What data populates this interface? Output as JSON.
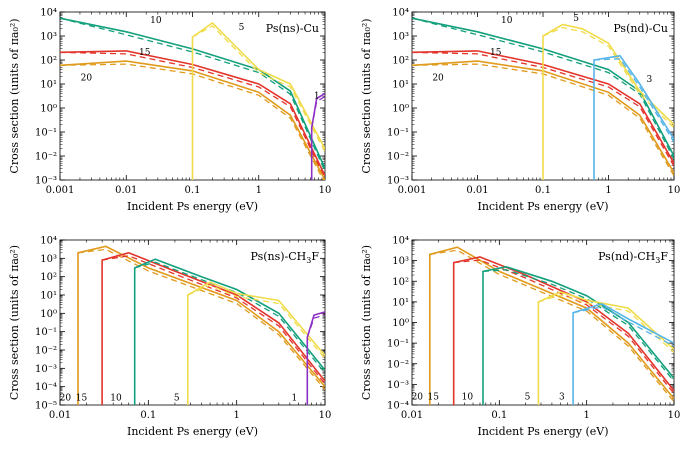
{
  "colors": {
    "20": "#e09a1c",
    "15": "#e3342b",
    "10": "#13a07c",
    "5": "#f0dc4a",
    "3": "#56b4e9",
    "1": "#8e2fc4"
  },
  "chart_data": [
    {
      "type": "line",
      "title": "Ps(ns)-Cu",
      "title_sub": "",
      "xlabel": "Incident Ps energy (eV)",
      "ylabel": "Cross section (units of πa₀²)",
      "xscale": "log",
      "yscale": "log",
      "xlim": [
        0.001,
        10
      ],
      "ylim": [
        0.001,
        10000
      ],
      "xticks": [
        "0.001",
        "0.01",
        "0.1",
        "1",
        "10"
      ],
      "yexp": [
        -3,
        -2,
        -1,
        0,
        1,
        2,
        3,
        4
      ],
      "series": [
        {
          "name": "10",
          "threshold": null,
          "points": [
            [
              0.001,
              5500
            ],
            [
              0.01,
              1500
            ],
            [
              0.1,
              290
            ],
            [
              1,
              40
            ],
            [
              3,
              5
            ],
            [
              10,
              0.003
            ]
          ],
          "curve_label": {
            "text": "10",
            "x": 0.028,
            "y": 3500
          }
        },
        {
          "name": "15",
          "threshold": null,
          "points": [
            [
              0.001,
              210
            ],
            [
              0.01,
              240
            ],
            [
              0.1,
              65
            ],
            [
              1,
              10
            ],
            [
              3,
              1.5
            ],
            [
              10,
              0.0015
            ]
          ],
          "curve_label": {
            "text": "15",
            "x": 0.019,
            "y": 160
          }
        },
        {
          "name": "20",
          "threshold": null,
          "points": [
            [
              0.001,
              60
            ],
            [
              0.01,
              90
            ],
            [
              0.1,
              35
            ],
            [
              1,
              4.5
            ],
            [
              3,
              0.5
            ],
            [
              10,
              0.001
            ]
          ],
          "curve_label": {
            "text": "20",
            "x": 0.0025,
            "y": 14
          }
        },
        {
          "name": "5",
          "threshold": 0.1,
          "points": [
            [
              0.1,
              900
            ],
            [
              0.2,
              3500
            ],
            [
              0.4,
              500
            ],
            [
              1,
              40
            ],
            [
              3,
              10
            ],
            [
              10,
              0.02
            ]
          ],
          "curve_label": {
            "text": "5",
            "x": 0.55,
            "y": 1800
          }
        },
        {
          "name": "1",
          "threshold": 6.3,
          "points": [
            [
              6.3,
              0.15
            ],
            [
              7.5,
              2.5
            ],
            [
              10,
              4
            ]
          ],
          "curve_label": {
            "text": "1",
            "x": 7.5,
            "y": 2.5
          }
        }
      ]
    },
    {
      "type": "line",
      "title": "Ps(nd)-Cu",
      "title_sub": "",
      "xlabel": "Incident Ps energy (eV)",
      "ylabel": "Cross section (units of πa₀²)",
      "xscale": "log",
      "yscale": "log",
      "xlim": [
        0.001,
        10
      ],
      "ylim": [
        0.001,
        10000
      ],
      "xticks": [
        "0.001",
        "0.01",
        "0.1",
        "1",
        "10"
      ],
      "yexp": [
        -3,
        -2,
        -1,
        0,
        1,
        2,
        3,
        4
      ],
      "series": [
        {
          "name": "10",
          "threshold": null,
          "points": [
            [
              0.001,
              5500
            ],
            [
              0.01,
              1500
            ],
            [
              0.1,
              290
            ],
            [
              1,
              40
            ],
            [
              3,
              5
            ],
            [
              10,
              0.01
            ]
          ],
          "curve_label": {
            "text": "10",
            "x": 0.028,
            "y": 3500
          }
        },
        {
          "name": "15",
          "threshold": null,
          "points": [
            [
              0.001,
              210
            ],
            [
              0.01,
              240
            ],
            [
              0.1,
              65
            ],
            [
              1,
              10
            ],
            [
              3,
              1.5
            ],
            [
              10,
              0.005
            ]
          ],
          "curve_label": {
            "text": "15",
            "x": 0.019,
            "y": 160
          }
        },
        {
          "name": "20",
          "threshold": null,
          "points": [
            [
              0.001,
              60
            ],
            [
              0.01,
              90
            ],
            [
              0.1,
              35
            ],
            [
              1,
              4.5
            ],
            [
              3,
              0.5
            ],
            [
              10,
              0.002
            ]
          ],
          "curve_label": {
            "text": "20",
            "x": 0.0025,
            "y": 14
          }
        },
        {
          "name": "5",
          "threshold": 0.1,
          "points": [
            [
              0.1,
              1000
            ],
            [
              0.2,
              3000
            ],
            [
              0.4,
              2000
            ],
            [
              1,
              500
            ],
            [
              3,
              5
            ],
            [
              10,
              0.2
            ]
          ],
          "curve_label": {
            "text": "5",
            "x": 0.32,
            "y": 4200
          }
        },
        {
          "name": "3",
          "threshold": 0.6,
          "points": [
            [
              0.6,
              100
            ],
            [
              1.5,
              150
            ],
            [
              3,
              10
            ],
            [
              10,
              0.05
            ]
          ],
          "curve_label": {
            "text": "3",
            "x": 4.2,
            "y": 12
          }
        }
      ]
    },
    {
      "type": "line",
      "title": "Ps(ns)-CH",
      "title_sub": "3",
      "title_end": "F",
      "xlabel": "Incident Ps energy (eV)",
      "ylabel": "Cross section (units of πa₀²)",
      "xscale": "log",
      "yscale": "log",
      "xlim": [
        0.01,
        10
      ],
      "ylim": [
        1e-05,
        10000
      ],
      "xticks": [
        "0.01",
        "0.1",
        "1",
        "10"
      ],
      "yexp": [
        -5,
        -4,
        -3,
        -2,
        -1,
        0,
        1,
        2,
        3,
        4
      ],
      "series": [
        {
          "name": "20",
          "threshold": 0.016,
          "points": [
            [
              0.016,
              2000
            ],
            [
              0.033,
              4500
            ],
            [
              0.1,
              300
            ],
            [
              1,
              5
            ],
            [
              3,
              0.1
            ],
            [
              10,
              0.0001
            ]
          ],
          "curve_label": {
            "text": "20",
            "x": 0.0115,
            "y": 1.8e-05
          }
        },
        {
          "name": "15",
          "threshold": 0.03,
          "points": [
            [
              0.03,
              800
            ],
            [
              0.06,
              2000
            ],
            [
              0.2,
              200
            ],
            [
              1,
              10
            ],
            [
              3,
              0.3
            ],
            [
              10,
              0.0002
            ]
          ],
          "curve_label": {
            "text": "15",
            "x": 0.0175,
            "y": 1.8e-05
          }
        },
        {
          "name": "10",
          "threshold": 0.07,
          "points": [
            [
              0.07,
              300
            ],
            [
              0.12,
              900
            ],
            [
              0.4,
              100
            ],
            [
              1,
              20
            ],
            [
              3,
              1
            ],
            [
              10,
              0.0008
            ]
          ],
          "curve_label": {
            "text": "10",
            "x": 0.043,
            "y": 1.8e-05
          }
        },
        {
          "name": "5",
          "threshold": 0.28,
          "points": [
            [
              0.28,
              10
            ],
            [
              0.5,
              50
            ],
            [
              1,
              12
            ],
            [
              3,
              5
            ],
            [
              10,
              0.005
            ]
          ],
          "curve_label": {
            "text": "5",
            "x": 0.21,
            "y": 1.8e-05
          }
        },
        {
          "name": "1",
          "threshold": 6.3,
          "points": [
            [
              6.3,
              0.05
            ],
            [
              7.5,
              0.8
            ],
            [
              10,
              1.2
            ]
          ],
          "curve_label": {
            "text": "1",
            "x": 4.5,
            "y": 1.8e-05
          }
        }
      ]
    },
    {
      "type": "line",
      "title": "Ps(nd)-CH",
      "title_sub": "3",
      "title_end": "F",
      "xlabel": "Incident Ps energy (eV)",
      "ylabel": "Cross section (units of πa₀²)",
      "xscale": "log",
      "yscale": "log",
      "xlim": [
        0.01,
        10
      ],
      "ylim": [
        0.0001,
        10000
      ],
      "xticks": [
        "0.01",
        "0.1",
        "1",
        "10"
      ],
      "yexp": [
        -4,
        -3,
        -2,
        -1,
        0,
        1,
        2,
        3,
        4
      ],
      "series": [
        {
          "name": "20",
          "threshold": 0.016,
          "points": [
            [
              0.016,
              2000
            ],
            [
              0.033,
              4500
            ],
            [
              0.1,
              300
            ],
            [
              1,
              5
            ],
            [
              3,
              0.1
            ],
            [
              10,
              0.0002
            ]
          ],
          "curve_label": {
            "text": "20",
            "x": 0.0115,
            "y": 0.00018
          }
        },
        {
          "name": "15",
          "threshold": 0.03,
          "points": [
            [
              0.03,
              800
            ],
            [
              0.06,
              1500
            ],
            [
              0.2,
              200
            ],
            [
              1,
              10
            ],
            [
              3,
              0.3
            ],
            [
              10,
              0.0005
            ]
          ],
          "curve_label": {
            "text": "15",
            "x": 0.0175,
            "y": 0.00018
          }
        },
        {
          "name": "10",
          "threshold": 0.065,
          "points": [
            [
              0.065,
              300
            ],
            [
              0.12,
              500
            ],
            [
              0.4,
              100
            ],
            [
              1,
              20
            ],
            [
              3,
              1
            ],
            [
              10,
              0.002
            ]
          ],
          "curve_label": {
            "text": "10",
            "x": 0.043,
            "y": 0.00018
          }
        },
        {
          "name": "5",
          "threshold": 0.28,
          "points": [
            [
              0.28,
              10
            ],
            [
              0.5,
              30
            ],
            [
              1,
              12
            ],
            [
              3,
              5
            ],
            [
              10,
              0.05
            ]
          ],
          "curve_label": {
            "text": "5",
            "x": 0.21,
            "y": 0.00018
          }
        },
        {
          "name": "3",
          "threshold": 0.7,
          "points": [
            [
              0.7,
              3
            ],
            [
              1.5,
              8
            ],
            [
              3,
              1.5
            ],
            [
              10,
              0.1
            ]
          ],
          "curve_label": {
            "text": "3",
            "x": 0.52,
            "y": 0.00018
          }
        }
      ]
    }
  ]
}
